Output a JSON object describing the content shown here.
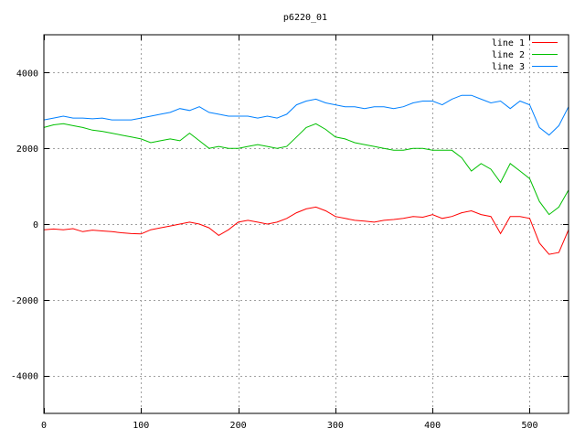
{
  "chart_data": {
    "type": "line",
    "title": "p6220_01",
    "xlabel": "",
    "ylabel": "",
    "xlim": [
      0,
      540
    ],
    "ylim": [
      -5000,
      5000
    ],
    "xticks": [
      0,
      100,
      200,
      300,
      400,
      500
    ],
    "yticks": [
      -4000,
      -2000,
      0,
      2000,
      4000
    ],
    "grid": true,
    "legend_position": "top-right",
    "series": [
      {
        "name": "line 1",
        "color": "#ff0000",
        "x": [
          0,
          10,
          20,
          30,
          40,
          50,
          60,
          70,
          80,
          90,
          100,
          110,
          120,
          130,
          140,
          150,
          160,
          170,
          180,
          190,
          200,
          210,
          220,
          230,
          240,
          250,
          260,
          270,
          280,
          290,
          300,
          310,
          320,
          330,
          340,
          350,
          360,
          370,
          380,
          390,
          400,
          410,
          420,
          430,
          440,
          450,
          460,
          470,
          480,
          490,
          500,
          510,
          520,
          530,
          540
        ],
        "values": [
          -150,
          -130,
          -150,
          -120,
          -200,
          -160,
          -180,
          -200,
          -230,
          -250,
          -260,
          -150,
          -100,
          -50,
          0,
          50,
          0,
          -100,
          -300,
          -150,
          50,
          100,
          50,
          0,
          50,
          150,
          300,
          400,
          450,
          350,
          200,
          150,
          100,
          80,
          50,
          100,
          120,
          150,
          200,
          180,
          250,
          150,
          200,
          300,
          350,
          250,
          200,
          -250,
          200,
          200,
          150,
          -500,
          -800,
          -750,
          -150
        ]
      },
      {
        "name": "line 2",
        "color": "#00c000",
        "x": [
          0,
          10,
          20,
          30,
          40,
          50,
          60,
          70,
          80,
          90,
          100,
          110,
          120,
          130,
          140,
          150,
          160,
          170,
          180,
          190,
          200,
          210,
          220,
          230,
          240,
          250,
          260,
          270,
          280,
          290,
          300,
          310,
          320,
          330,
          340,
          350,
          360,
          370,
          380,
          390,
          400,
          410,
          420,
          430,
          440,
          450,
          460,
          470,
          480,
          490,
          500,
          510,
          520,
          530,
          540
        ],
        "values": [
          2550,
          2620,
          2650,
          2600,
          2550,
          2480,
          2450,
          2400,
          2350,
          2300,
          2250,
          2150,
          2200,
          2250,
          2200,
          2400,
          2200,
          2000,
          2050,
          2000,
          2000,
          2050,
          2100,
          2050,
          2000,
          2050,
          2300,
          2550,
          2650,
          2500,
          2300,
          2250,
          2150,
          2100,
          2050,
          2000,
          1950,
          1950,
          2000,
          2000,
          1950,
          1950,
          1950,
          1750,
          1400,
          1600,
          1450,
          1100,
          1600,
          1400,
          1200,
          600,
          250,
          450,
          900
        ]
      },
      {
        "name": "line 3",
        "color": "#0080ff",
        "x": [
          0,
          10,
          20,
          30,
          40,
          50,
          60,
          70,
          80,
          90,
          100,
          110,
          120,
          130,
          140,
          150,
          160,
          170,
          180,
          190,
          200,
          210,
          220,
          230,
          240,
          250,
          260,
          270,
          280,
          290,
          300,
          310,
          320,
          330,
          340,
          350,
          360,
          370,
          380,
          390,
          400,
          410,
          420,
          430,
          440,
          450,
          460,
          470,
          480,
          490,
          500,
          510,
          520,
          530,
          540
        ],
        "values": [
          2750,
          2800,
          2850,
          2800,
          2800,
          2780,
          2800,
          2750,
          2750,
          2750,
          2800,
          2850,
          2900,
          2950,
          3050,
          3000,
          3100,
          2950,
          2900,
          2850,
          2850,
          2850,
          2800,
          2850,
          2800,
          2900,
          3150,
          3250,
          3300,
          3200,
          3150,
          3100,
          3100,
          3050,
          3100,
          3100,
          3050,
          3100,
          3200,
          3250,
          3250,
          3150,
          3300,
          3400,
          3400,
          3300,
          3200,
          3250,
          3050,
          3250,
          3150,
          2550,
          2350,
          2600,
          3100
        ]
      }
    ]
  }
}
